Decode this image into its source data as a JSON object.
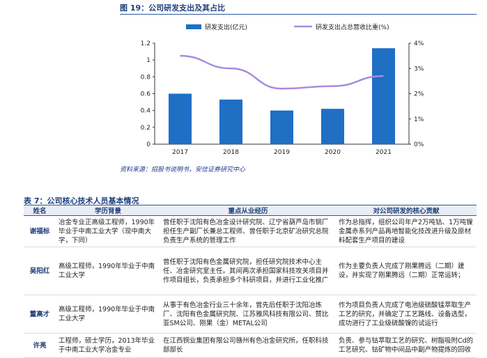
{
  "figure": {
    "title": "图 19：公司研发支出及其占比",
    "source": "资料来源：招股书说明书，安信证券研究中心"
  },
  "chart_data": {
    "type": "bar+line",
    "categories": [
      "2017",
      "2018",
      "2019",
      "2020",
      "2021"
    ],
    "series": [
      {
        "name": "研发支出(亿元)",
        "kind": "bar",
        "axis": "left",
        "color": "#1f6fc5",
        "values": [
          0.6,
          0.53,
          0.4,
          0.42,
          1.14
        ]
      },
      {
        "name": "研发支出占总营收比重(%)",
        "kind": "line",
        "axis": "right",
        "color": "#a78be0",
        "values": [
          3.5,
          3.0,
          2.2,
          2.3,
          2.7
        ]
      }
    ],
    "ylim_left": [
      0,
      1.2
    ],
    "yticks_left": [
      "0",
      "0.2",
      "0.4",
      "0.6",
      "0.8",
      "1",
      "1.2"
    ],
    "ylim_right": [
      0,
      4
    ],
    "yticks_right": [
      "0%",
      "1%",
      "2%",
      "3%",
      "4%"
    ],
    "legend": "top",
    "grid": false
  },
  "table": {
    "title": "表 7：公司核心技术人员基本情况",
    "headers": [
      "姓名",
      "学历背景",
      "重点从业经历",
      "对公司研发的核心贡献"
    ],
    "rows": [
      {
        "name": "谢福标",
        "edu": "冶金专业正高级工程师，1990年毕业于中南工业大学（现中南大学，下同）",
        "exp": "曾任职于沈阳有色冶金设计研究院、辽宁省葫芦岛市钢厂担任生产副厂长兼总工程师、曾任职于北京矿冶研究总院负责生产系统的管理工作",
        "contrib": "作为总指挥，组织公司年产2万吨钴、1万吨镍金属赤系列产品再地智能化技改进升级及原材料配套生产项目的建设"
      },
      {
        "name": "吴阳红",
        "edu": "高级工程师，1990年毕业于中南工业大学",
        "exp": "曾任职于沈阳有色金属研究院，担任研究院技术中心主任、冶金研究室主任。其间两次承担国家科技攻关项目并作项目组长，负责承担多个科研项目，并进行工业化推广",
        "contrib": "作为主要负责人完成了刚果腾远（二期）建设，并实现了刚果腾远（二期）正常运转；"
      },
      {
        "name": "董高才",
        "edu": "高级工程师，1990年毕业于中南工业大学",
        "exp": "从事于有色冶金行业三十余年，曾先后任职于沈阳冶炼厂、沈阳有色金属研究院、江苏雅风科技有限公司、赞比亚SM公司、刚果（金）METAL公司",
        "contrib": "作为项目负责人完成了电池级硫酸锰萃取生产工艺的研究，并确定了工艺路线、设备选型，成功进行了工业级硫酸镍的试运行"
      },
      {
        "name": "许亮",
        "edu": "工程师，硕士学历，2013年毕业于中南工业大学冶金专业",
        "exp": "在江西铜业集团有限公司赣州有色冶金研究所，任职科技部部长",
        "contrib": "负责、参与钴萃取工艺的研究、树脂吸附Cd的工艺研究、钴矿物中间品中副产物提炼的回收"
      }
    ]
  }
}
